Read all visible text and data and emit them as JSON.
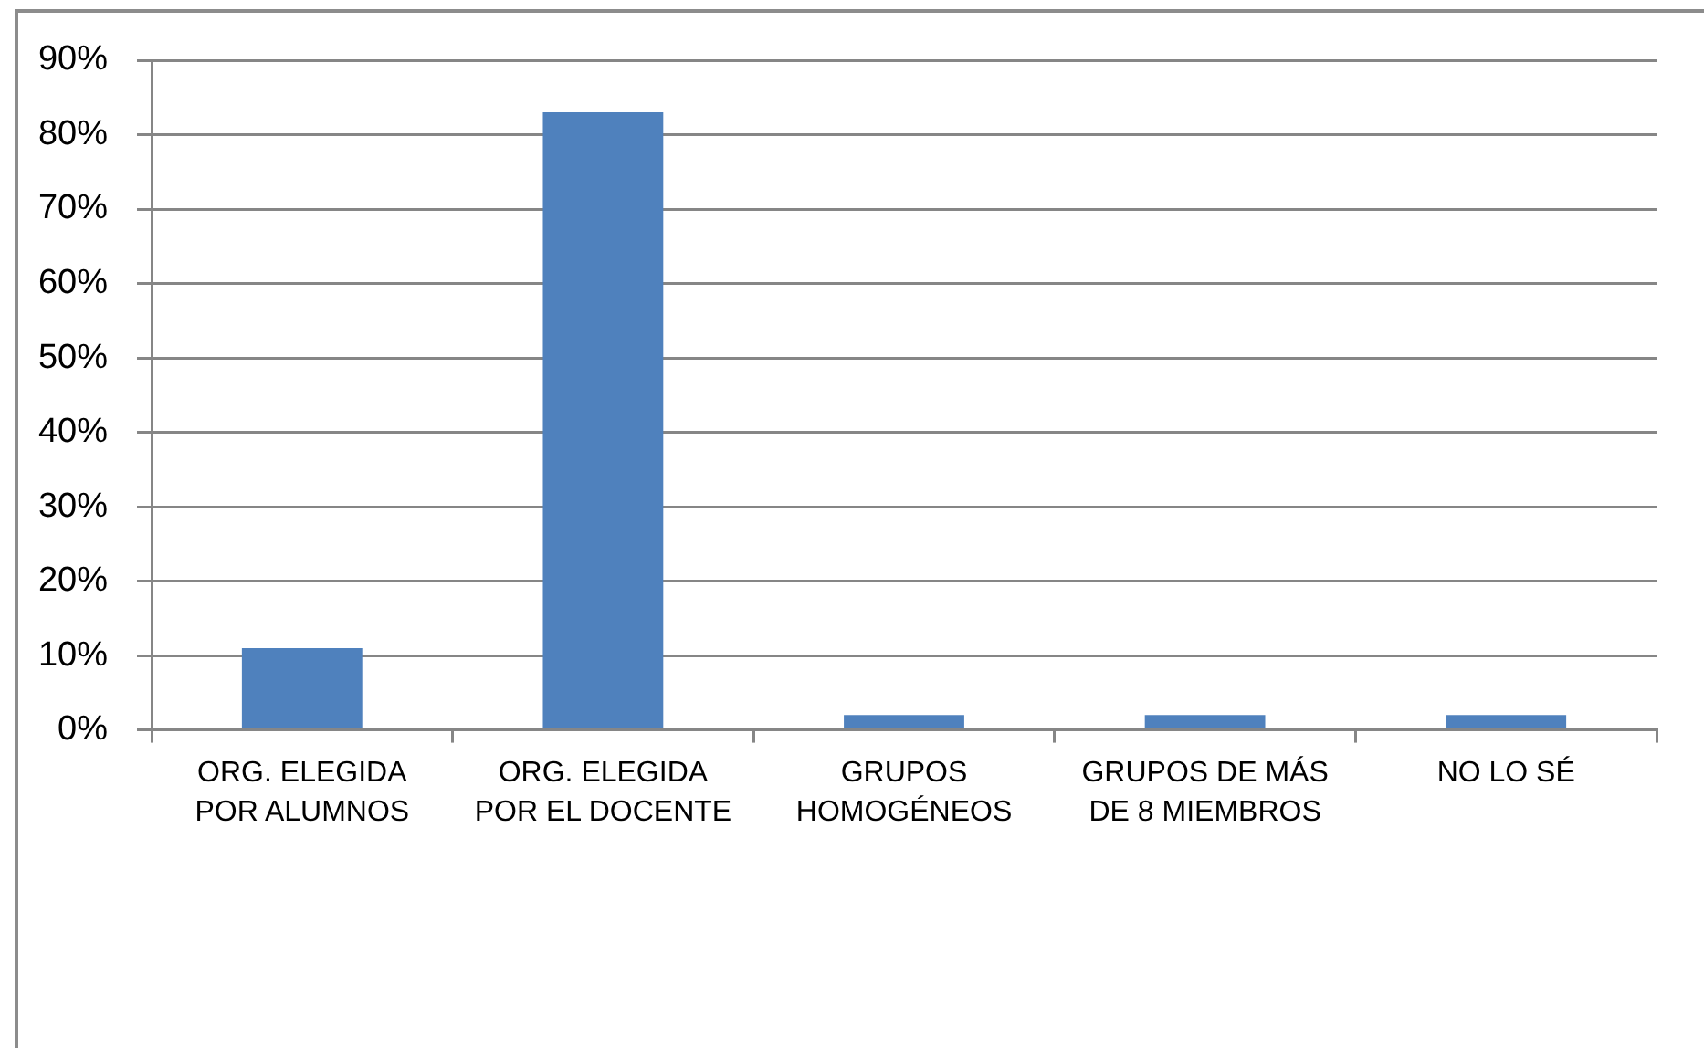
{
  "chart_data": {
    "type": "bar",
    "categories": [
      "ORG. ELEGIDA POR ALUMNOS",
      "ORG. ELEGIDA POR EL DOCENTE",
      "GRUPOS HOMOGÉNEOS",
      "GRUPOS DE MÁS DE 8 MIEMBROS",
      "NO LO SÉ"
    ],
    "values": [
      11,
      83,
      2,
      2,
      2
    ],
    "color": "#4f81bd",
    "ylim": [
      0,
      90
    ],
    "yticks": [
      {
        "value": 0,
        "label": "0%"
      },
      {
        "value": 10,
        "label": "10%"
      },
      {
        "value": 20,
        "label": "20%"
      },
      {
        "value": 30,
        "label": "30%"
      },
      {
        "value": 40,
        "label": "40%"
      },
      {
        "value": 50,
        "label": "50%"
      },
      {
        "value": 60,
        "label": "60%"
      },
      {
        "value": 70,
        "label": "70%"
      },
      {
        "value": 80,
        "label": "80%"
      },
      {
        "value": 90,
        "label": "90%"
      }
    ],
    "grid": "y"
  }
}
